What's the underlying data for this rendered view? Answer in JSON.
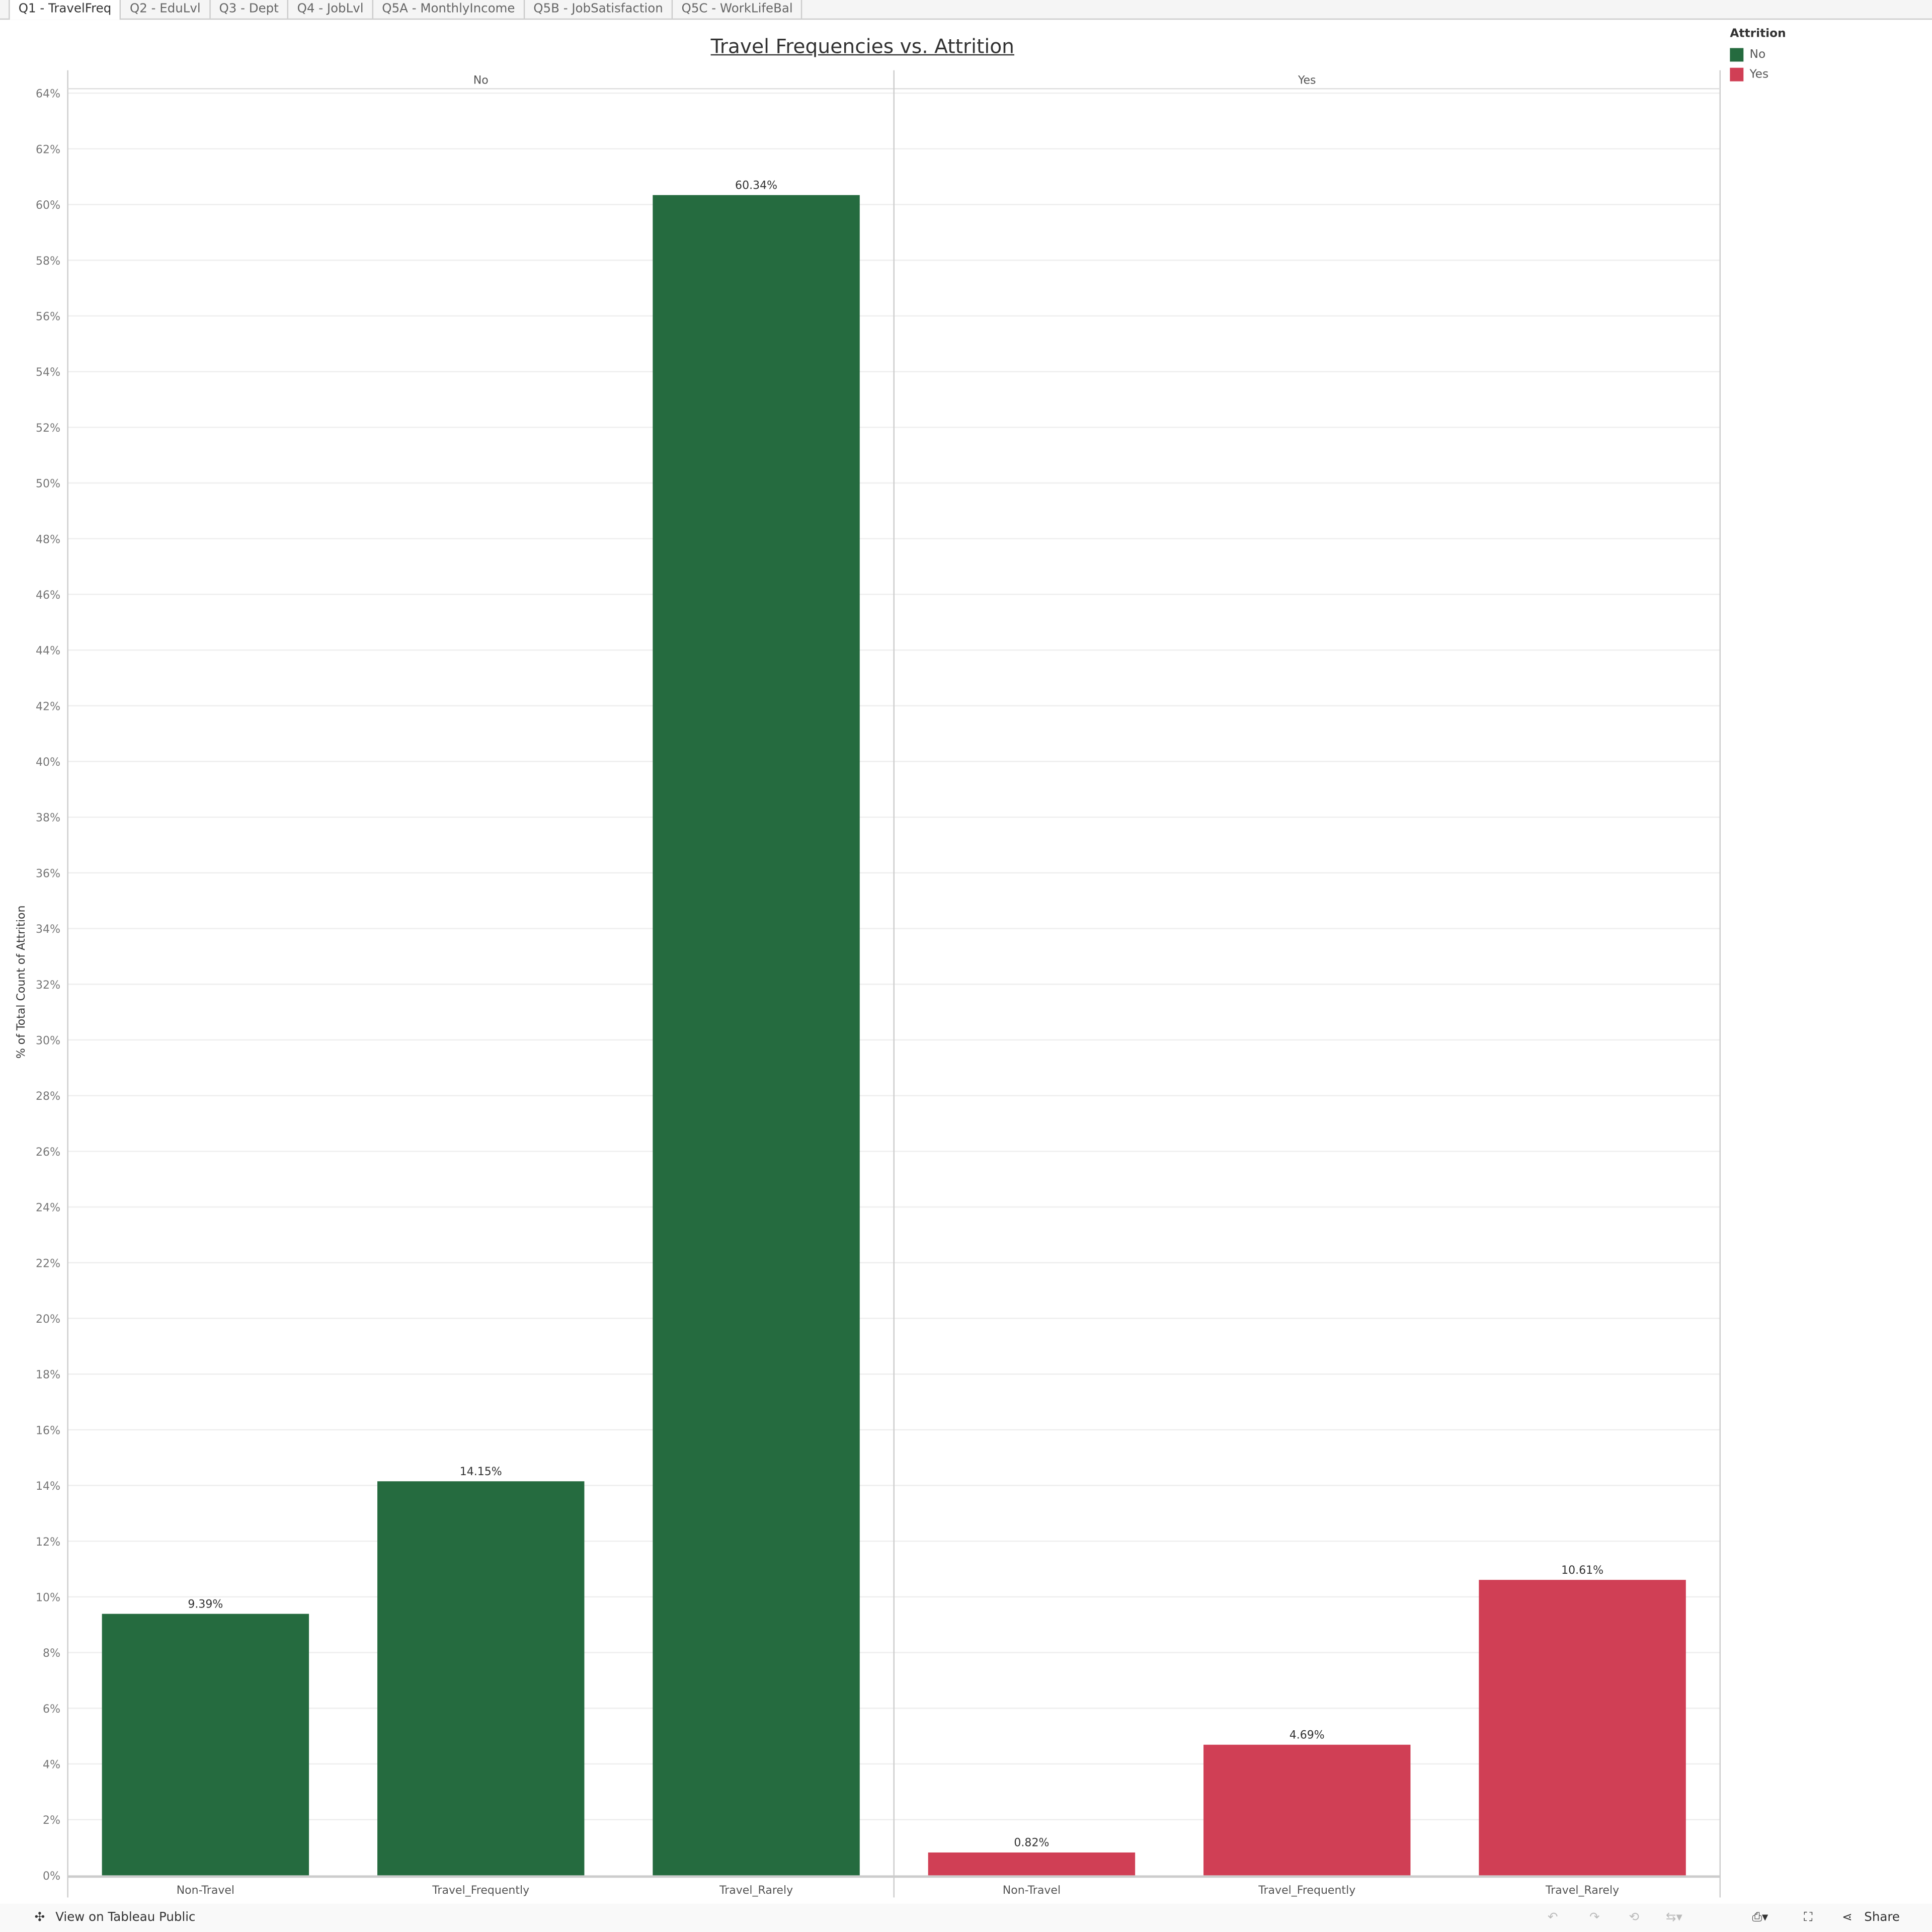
{
  "tabs": [
    {
      "label": "Q1 - TravelFreq",
      "active": true
    },
    {
      "label": "Q2 - EduLvl"
    },
    {
      "label": "Q3 - Dept"
    },
    {
      "label": "Q4 - JobLvl"
    },
    {
      "label": "Q5A - MonthlyIncome"
    },
    {
      "label": "Q5B - JobSatisfaction"
    },
    {
      "label": "Q5C - WorkLifeBal"
    }
  ],
  "legend": {
    "title": "Attrition",
    "items": [
      {
        "label": "No",
        "color": "#256b3f"
      },
      {
        "label": "Yes",
        "color": "#d03f55"
      }
    ]
  },
  "toolbar": {
    "view_label": "View on Tableau Public",
    "share_label": "Share"
  },
  "chart_data": {
    "type": "bar",
    "title": "Travel Frequencies vs. Attrition",
    "ylabel": "% of Total Count of Attrition",
    "ylim": [
      0,
      64
    ],
    "yticks": [
      "0%",
      "2%",
      "4%",
      "6%",
      "8%",
      "10%",
      "12%",
      "14%",
      "16%",
      "18%",
      "20%",
      "22%",
      "24%",
      "26%",
      "28%",
      "30%",
      "32%",
      "34%",
      "36%",
      "38%",
      "40%",
      "42%",
      "44%",
      "46%",
      "48%",
      "50%",
      "52%",
      "54%",
      "56%",
      "58%",
      "60%",
      "62%",
      "64%"
    ],
    "grid": true,
    "legend": "top-right",
    "panes": [
      {
        "name": "No",
        "color": "#256b3f",
        "categories": [
          "Non-Travel",
          "Travel_Frequently",
          "Travel_Rarely"
        ],
        "values": [
          9.39,
          14.15,
          60.34
        ],
        "labels": [
          "9.39%",
          "14.15%",
          "60.34%"
        ]
      },
      {
        "name": "Yes",
        "color": "#d03f55",
        "categories": [
          "Non-Travel",
          "Travel_Frequently",
          "Travel_Rarely"
        ],
        "values": [
          0.82,
          4.69,
          10.61
        ],
        "labels": [
          "0.82%",
          "4.69%",
          "10.61%"
        ]
      }
    ]
  }
}
